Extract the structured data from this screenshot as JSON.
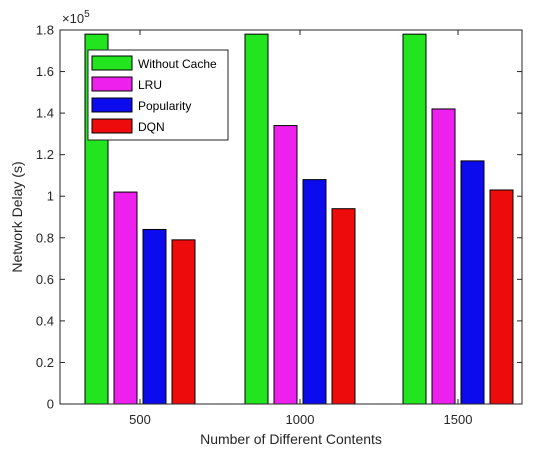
{
  "chart_data": {
    "type": "bar",
    "title": "",
    "xlabel": "Number of Different Contents",
    "ylabel": "Network Delay (s)",
    "y_exponent_label": "×10",
    "y_exponent_power": "5",
    "categories": [
      "500",
      "1000",
      "1500"
    ],
    "ylim": [
      0,
      1.8
    ],
    "y_ticks": [
      0,
      0.2,
      0.4,
      0.6,
      0.8,
      1,
      1.2,
      1.4,
      1.6,
      1.8
    ],
    "y_tick_labels": [
      "0",
      "0.2",
      "0.4",
      "0.6",
      "0.8",
      "1",
      "1.2",
      "1.4",
      "1.6",
      "1.8"
    ],
    "grid": false,
    "legend_position": "top-left",
    "series": [
      {
        "name": "Without Cache",
        "color": "#22e51f",
        "values": [
          1.78,
          1.78,
          1.78
        ]
      },
      {
        "name": "LRU",
        "color": "#ee20ee",
        "values": [
          1.02,
          1.34,
          1.42
        ]
      },
      {
        "name": "Popularity",
        "color": "#0b0bee",
        "values": [
          0.84,
          1.08,
          1.17
        ]
      },
      {
        "name": "DQN",
        "color": "#ee0b0b",
        "values": [
          0.79,
          0.94,
          1.03
        ]
      }
    ]
  }
}
